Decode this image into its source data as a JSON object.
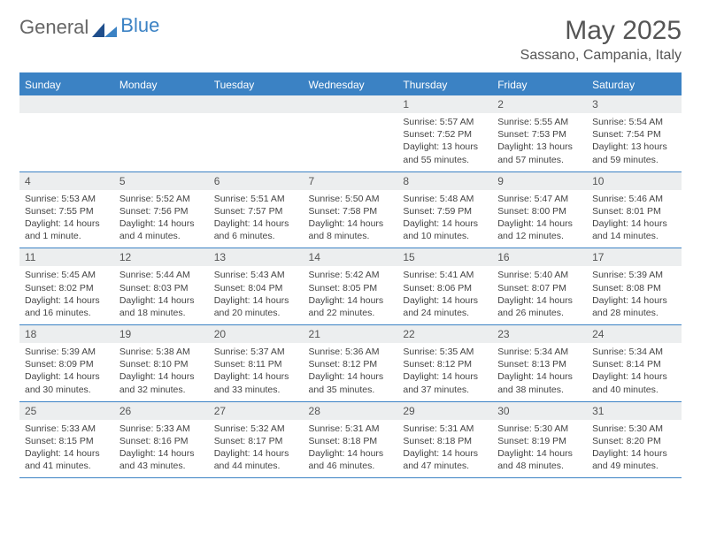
{
  "brand": {
    "part1": "General",
    "part2": "Blue"
  },
  "title": {
    "month": "May 2025",
    "location": "Sassano, Campania, Italy"
  },
  "colors": {
    "header_bg": "#3b82c4",
    "header_text": "#ffffff",
    "daynum_bg": "#eceeef",
    "text": "#555555",
    "rule": "#3b82c4"
  },
  "day_headers": [
    "Sunday",
    "Monday",
    "Tuesday",
    "Wednesday",
    "Thursday",
    "Friday",
    "Saturday"
  ],
  "weeks": [
    {
      "nums": [
        "",
        "",
        "",
        "",
        "1",
        "2",
        "3"
      ],
      "cells": [
        {
          "sunrise": "",
          "sunset": "",
          "daylight": ""
        },
        {
          "sunrise": "",
          "sunset": "",
          "daylight": ""
        },
        {
          "sunrise": "",
          "sunset": "",
          "daylight": ""
        },
        {
          "sunrise": "",
          "sunset": "",
          "daylight": ""
        },
        {
          "sunrise": "Sunrise: 5:57 AM",
          "sunset": "Sunset: 7:52 PM",
          "daylight": "Daylight: 13 hours and 55 minutes."
        },
        {
          "sunrise": "Sunrise: 5:55 AM",
          "sunset": "Sunset: 7:53 PM",
          "daylight": "Daylight: 13 hours and 57 minutes."
        },
        {
          "sunrise": "Sunrise: 5:54 AM",
          "sunset": "Sunset: 7:54 PM",
          "daylight": "Daylight: 13 hours and 59 minutes."
        }
      ]
    },
    {
      "nums": [
        "4",
        "5",
        "6",
        "7",
        "8",
        "9",
        "10"
      ],
      "cells": [
        {
          "sunrise": "Sunrise: 5:53 AM",
          "sunset": "Sunset: 7:55 PM",
          "daylight": "Daylight: 14 hours and 1 minute."
        },
        {
          "sunrise": "Sunrise: 5:52 AM",
          "sunset": "Sunset: 7:56 PM",
          "daylight": "Daylight: 14 hours and 4 minutes."
        },
        {
          "sunrise": "Sunrise: 5:51 AM",
          "sunset": "Sunset: 7:57 PM",
          "daylight": "Daylight: 14 hours and 6 minutes."
        },
        {
          "sunrise": "Sunrise: 5:50 AM",
          "sunset": "Sunset: 7:58 PM",
          "daylight": "Daylight: 14 hours and 8 minutes."
        },
        {
          "sunrise": "Sunrise: 5:48 AM",
          "sunset": "Sunset: 7:59 PM",
          "daylight": "Daylight: 14 hours and 10 minutes."
        },
        {
          "sunrise": "Sunrise: 5:47 AM",
          "sunset": "Sunset: 8:00 PM",
          "daylight": "Daylight: 14 hours and 12 minutes."
        },
        {
          "sunrise": "Sunrise: 5:46 AM",
          "sunset": "Sunset: 8:01 PM",
          "daylight": "Daylight: 14 hours and 14 minutes."
        }
      ]
    },
    {
      "nums": [
        "11",
        "12",
        "13",
        "14",
        "15",
        "16",
        "17"
      ],
      "cells": [
        {
          "sunrise": "Sunrise: 5:45 AM",
          "sunset": "Sunset: 8:02 PM",
          "daylight": "Daylight: 14 hours and 16 minutes."
        },
        {
          "sunrise": "Sunrise: 5:44 AM",
          "sunset": "Sunset: 8:03 PM",
          "daylight": "Daylight: 14 hours and 18 minutes."
        },
        {
          "sunrise": "Sunrise: 5:43 AM",
          "sunset": "Sunset: 8:04 PM",
          "daylight": "Daylight: 14 hours and 20 minutes."
        },
        {
          "sunrise": "Sunrise: 5:42 AM",
          "sunset": "Sunset: 8:05 PM",
          "daylight": "Daylight: 14 hours and 22 minutes."
        },
        {
          "sunrise": "Sunrise: 5:41 AM",
          "sunset": "Sunset: 8:06 PM",
          "daylight": "Daylight: 14 hours and 24 minutes."
        },
        {
          "sunrise": "Sunrise: 5:40 AM",
          "sunset": "Sunset: 8:07 PM",
          "daylight": "Daylight: 14 hours and 26 minutes."
        },
        {
          "sunrise": "Sunrise: 5:39 AM",
          "sunset": "Sunset: 8:08 PM",
          "daylight": "Daylight: 14 hours and 28 minutes."
        }
      ]
    },
    {
      "nums": [
        "18",
        "19",
        "20",
        "21",
        "22",
        "23",
        "24"
      ],
      "cells": [
        {
          "sunrise": "Sunrise: 5:39 AM",
          "sunset": "Sunset: 8:09 PM",
          "daylight": "Daylight: 14 hours and 30 minutes."
        },
        {
          "sunrise": "Sunrise: 5:38 AM",
          "sunset": "Sunset: 8:10 PM",
          "daylight": "Daylight: 14 hours and 32 minutes."
        },
        {
          "sunrise": "Sunrise: 5:37 AM",
          "sunset": "Sunset: 8:11 PM",
          "daylight": "Daylight: 14 hours and 33 minutes."
        },
        {
          "sunrise": "Sunrise: 5:36 AM",
          "sunset": "Sunset: 8:12 PM",
          "daylight": "Daylight: 14 hours and 35 minutes."
        },
        {
          "sunrise": "Sunrise: 5:35 AM",
          "sunset": "Sunset: 8:12 PM",
          "daylight": "Daylight: 14 hours and 37 minutes."
        },
        {
          "sunrise": "Sunrise: 5:34 AM",
          "sunset": "Sunset: 8:13 PM",
          "daylight": "Daylight: 14 hours and 38 minutes."
        },
        {
          "sunrise": "Sunrise: 5:34 AM",
          "sunset": "Sunset: 8:14 PM",
          "daylight": "Daylight: 14 hours and 40 minutes."
        }
      ]
    },
    {
      "nums": [
        "25",
        "26",
        "27",
        "28",
        "29",
        "30",
        "31"
      ],
      "cells": [
        {
          "sunrise": "Sunrise: 5:33 AM",
          "sunset": "Sunset: 8:15 PM",
          "daylight": "Daylight: 14 hours and 41 minutes."
        },
        {
          "sunrise": "Sunrise: 5:33 AM",
          "sunset": "Sunset: 8:16 PM",
          "daylight": "Daylight: 14 hours and 43 minutes."
        },
        {
          "sunrise": "Sunrise: 5:32 AM",
          "sunset": "Sunset: 8:17 PM",
          "daylight": "Daylight: 14 hours and 44 minutes."
        },
        {
          "sunrise": "Sunrise: 5:31 AM",
          "sunset": "Sunset: 8:18 PM",
          "daylight": "Daylight: 14 hours and 46 minutes."
        },
        {
          "sunrise": "Sunrise: 5:31 AM",
          "sunset": "Sunset: 8:18 PM",
          "daylight": "Daylight: 14 hours and 47 minutes."
        },
        {
          "sunrise": "Sunrise: 5:30 AM",
          "sunset": "Sunset: 8:19 PM",
          "daylight": "Daylight: 14 hours and 48 minutes."
        },
        {
          "sunrise": "Sunrise: 5:30 AM",
          "sunset": "Sunset: 8:20 PM",
          "daylight": "Daylight: 14 hours and 49 minutes."
        }
      ]
    }
  ]
}
